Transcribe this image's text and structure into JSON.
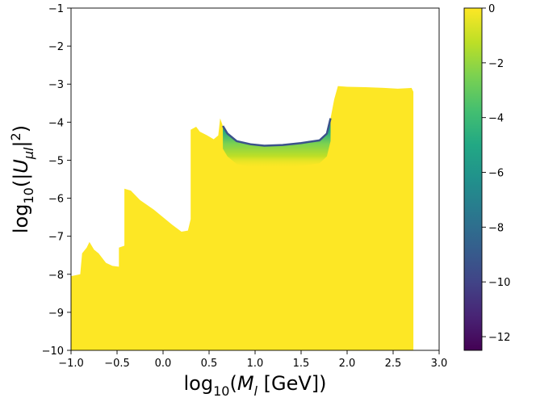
{
  "chart_data": {
    "type": "heatmap",
    "title": "",
    "xlabel": {
      "base": "log",
      "sub": "10",
      "paren_open": "(",
      "var": "M",
      "var_sub": "l",
      "unit": " [GeV])"
    },
    "ylabel": {
      "base": "log",
      "sub": "10",
      "paren_open": "(|",
      "var": "U",
      "var_sub": "μl",
      "close": "|",
      "sup": "2",
      "paren_close": ")"
    },
    "xlim": [
      -1.0,
      3.0
    ],
    "ylim": [
      -10,
      -1
    ],
    "xticks": [
      -1.0,
      -0.5,
      0.0,
      0.5,
      1.0,
      1.5,
      2.0,
      2.5,
      3.0
    ],
    "xtick_labels": [
      "−1.0",
      "−0.5",
      "0.0",
      "0.5",
      "1.0",
      "1.5",
      "2.0",
      "2.5",
      "3.0"
    ],
    "yticks": [
      -1,
      -2,
      -3,
      -4,
      -5,
      -6,
      -7,
      -8,
      -9,
      -10
    ],
    "ytick_labels": [
      "−1",
      "−2",
      "−3",
      "−4",
      "−5",
      "−6",
      "−7",
      "−8",
      "−9",
      "−10"
    ],
    "colorbar": {
      "colormap": "viridis",
      "range": [
        -12.5,
        0
      ],
      "ticks": [
        0,
        -2,
        -4,
        -6,
        -8,
        -10,
        -12
      ],
      "tick_labels": [
        "0",
        "−2",
        "−4",
        "−6",
        "−8",
        "−10",
        "−12"
      ]
    },
    "region_boundary": [
      [
        -1.0,
        -10.0
      ],
      [
        -1.0,
        -8.05
      ],
      [
        -0.9,
        -8.0
      ],
      [
        -0.88,
        -7.45
      ],
      [
        -0.83,
        -7.3
      ],
      [
        -0.8,
        -7.15
      ],
      [
        -0.75,
        -7.35
      ],
      [
        -0.7,
        -7.45
      ],
      [
        -0.62,
        -7.7
      ],
      [
        -0.55,
        -7.78
      ],
      [
        -0.48,
        -7.8
      ],
      [
        -0.48,
        -7.3
      ],
      [
        -0.42,
        -7.25
      ],
      [
        -0.42,
        -5.75
      ],
      [
        -0.35,
        -5.8
      ],
      [
        -0.25,
        -6.05
      ],
      [
        -0.1,
        -6.3
      ],
      [
        0.0,
        -6.5
      ],
      [
        0.1,
        -6.7
      ],
      [
        0.2,
        -6.88
      ],
      [
        0.27,
        -6.85
      ],
      [
        0.3,
        -6.55
      ],
      [
        0.3,
        -4.2
      ],
      [
        0.36,
        -4.12
      ],
      [
        0.4,
        -4.25
      ],
      [
        0.48,
        -4.35
      ],
      [
        0.55,
        -4.45
      ],
      [
        0.6,
        -4.35
      ],
      [
        0.62,
        -3.9
      ],
      [
        0.65,
        -4.1
      ],
      [
        0.7,
        -4.3
      ],
      [
        0.8,
        -4.5
      ],
      [
        0.95,
        -4.58
      ],
      [
        1.1,
        -4.62
      ],
      [
        1.3,
        -4.6
      ],
      [
        1.5,
        -4.55
      ],
      [
        1.7,
        -4.48
      ],
      [
        1.78,
        -4.3
      ],
      [
        1.82,
        -3.9
      ],
      [
        1.86,
        -3.4
      ],
      [
        1.9,
        -3.05
      ],
      [
        2.0,
        -3.07
      ],
      [
        2.2,
        -3.08
      ],
      [
        2.4,
        -3.1
      ],
      [
        2.55,
        -3.12
      ],
      [
        2.7,
        -3.1
      ],
      [
        2.72,
        -3.2
      ],
      [
        2.72,
        -10.0
      ]
    ],
    "boundary_band": {
      "x_range": [
        0.63,
        1.82
      ],
      "color_values": [
        -10,
        -8,
        -6,
        -4,
        -2,
        0
      ],
      "depth_log10U2": 0.6
    }
  }
}
